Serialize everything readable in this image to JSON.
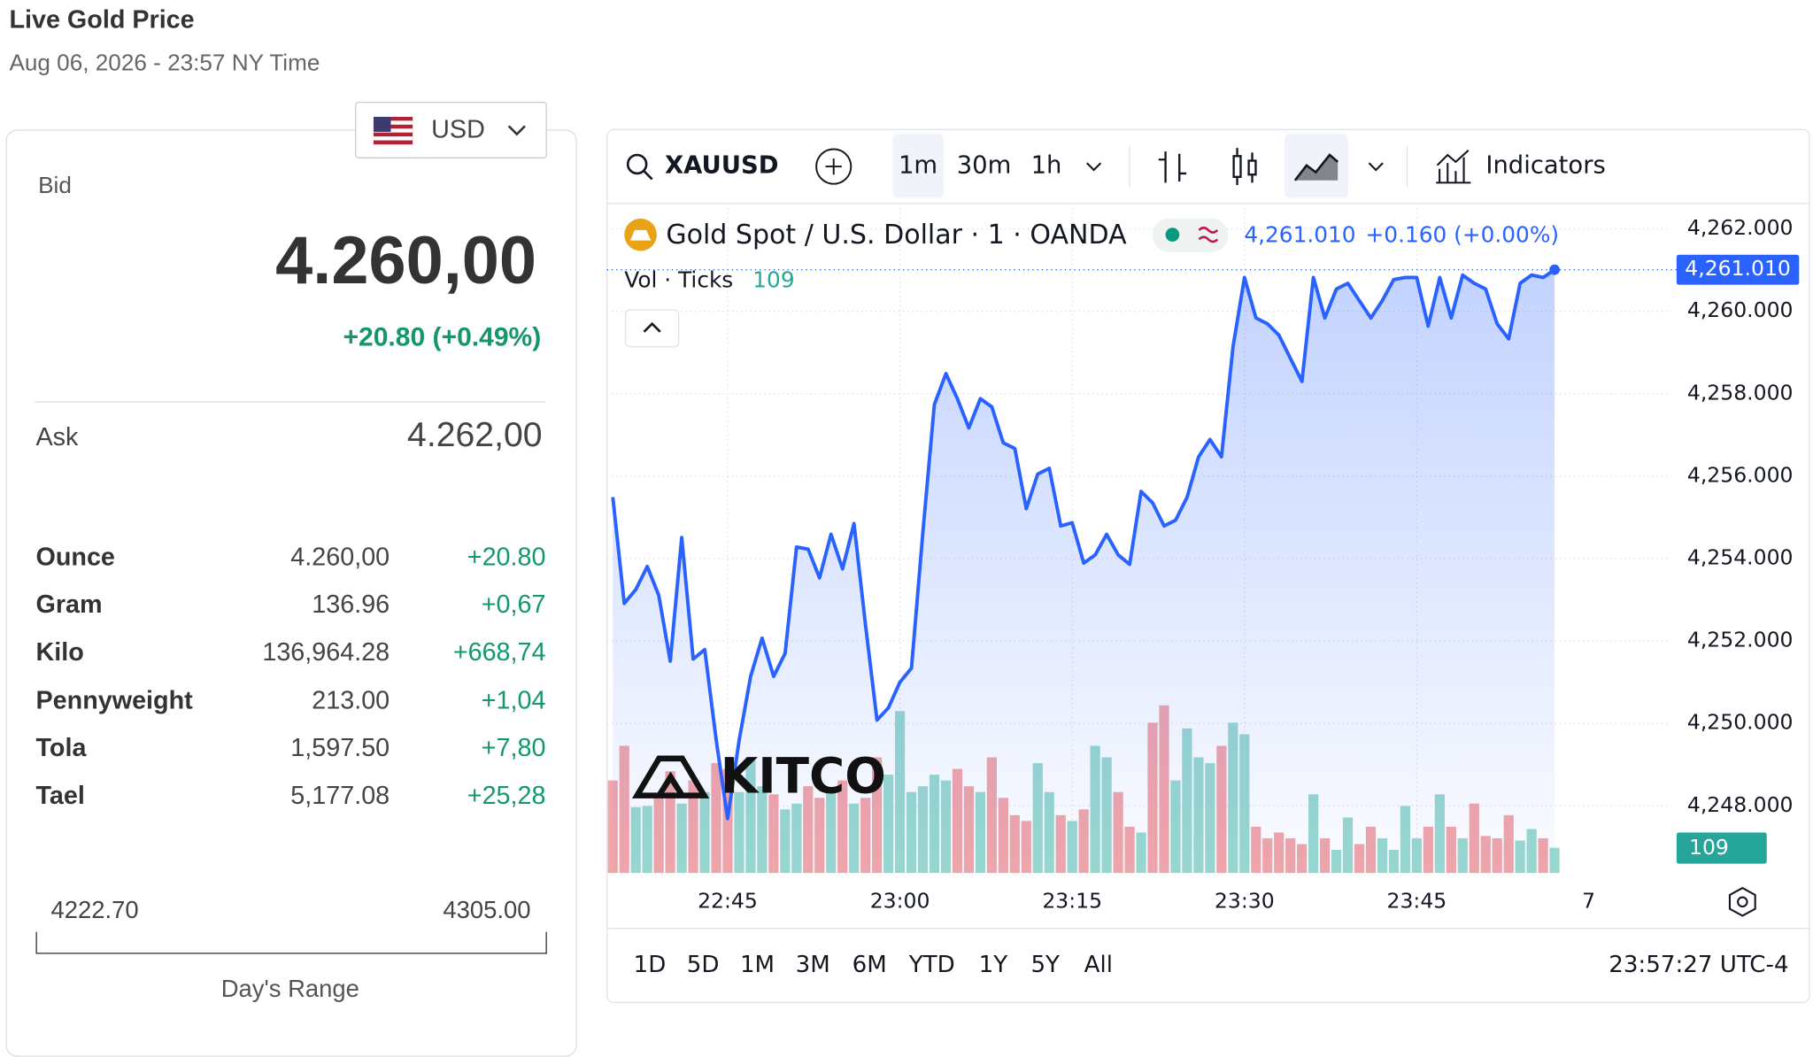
{
  "header": {
    "title": "Live Gold Price",
    "timestamp": "Aug 06, 2026 - 23:57 NY Time"
  },
  "currency": "USD",
  "quote": {
    "bid_label": "Bid",
    "bid": "4.260,00",
    "change": "+20.80 (+0.49%)",
    "ask_label": "Ask",
    "ask": "4.262,00"
  },
  "table": {
    "rows": [
      [
        "Ounce",
        "4.260,00",
        "+20.80"
      ],
      [
        "Gram",
        "136.96",
        "+0,67"
      ],
      [
        "Kilo",
        "136,964.28",
        "+668,74"
      ],
      [
        "Pennyweight",
        "213.00",
        "+1,04"
      ],
      [
        "Tola",
        "1,597.50",
        "+7,80"
      ],
      [
        "Tael",
        "5,177.08",
        "+25,28"
      ]
    ]
  },
  "day_range": {
    "low": "4222.70",
    "high": "4305.00",
    "label": "Day's Range"
  },
  "toolbar": {
    "symbol": "XAUUSD",
    "intervals": [
      "1m",
      "30m",
      "1h"
    ],
    "indicators": "Indicators"
  },
  "chart_data": {
    "type": "line",
    "title": "Gold Spot / U.S. Dollar · 1 · OANDA",
    "last_price": "4,261.010",
    "last_change": "+0.160 (+0.00%)",
    "volume_label": "Vol · Ticks",
    "watermark": "KITCO",
    "axis_edge_label": "7",
    "color": "#2962ff",
    "grid": true,
    "categories": [
      null,
      null,
      null,
      null,
      null,
      null,
      null,
      null,
      null,
      null,
      "22:45",
      null,
      null,
      null,
      null,
      null,
      null,
      null,
      null,
      null,
      null,
      null,
      null,
      null,
      null,
      "23:00",
      null,
      null,
      null,
      null,
      null,
      null,
      null,
      null,
      null,
      null,
      null,
      null,
      null,
      null,
      "23:15",
      null,
      null,
      null,
      null,
      null,
      null,
      null,
      null,
      null,
      null,
      null,
      null,
      null,
      null,
      "23:30",
      null,
      null,
      null,
      null,
      null,
      null,
      null,
      null,
      null,
      null,
      null,
      null,
      null,
      null,
      "23:45",
      null,
      null,
      null,
      null,
      null,
      null,
      null,
      null,
      null,
      null,
      null,
      null
    ],
    "values": [
      4255.49,
      4252.91,
      4253.25,
      4253.81,
      4253.11,
      4251.51,
      4254.51,
      4251.56,
      4251.79,
      4249.6,
      4247.69,
      4249.6,
      4251.14,
      4252.07,
      4251.14,
      4251.7,
      4254.28,
      4254.23,
      4253.53,
      4254.59,
      4253.75,
      4254.85,
      4252.4,
      4250.08,
      4250.38,
      4251.0,
      4251.34,
      4254.65,
      4257.74,
      4258.49,
      4257.88,
      4257.17,
      4257.88,
      4257.68,
      4256.81,
      4256.67,
      4255.21,
      4256.05,
      4256.19,
      4254.79,
      4254.87,
      4253.89,
      4254.09,
      4254.59,
      4254.09,
      4253.86,
      4255.63,
      4255.35,
      4254.79,
      4254.93,
      4255.49,
      4256.47,
      4256.89,
      4256.47,
      4259.14,
      4260.82,
      4259.84,
      4259.7,
      4259.42,
      4258.86,
      4258.3,
      4260.82,
      4259.84,
      4260.54,
      4260.68,
      4260.26,
      4259.84,
      4260.26,
      4260.77,
      4260.82,
      4260.82,
      4259.64,
      4260.82,
      4259.84,
      4260.88,
      4260.68,
      4260.54,
      4259.7,
      4259.33,
      4260.68,
      4260.88,
      4260.82,
      4261.01
    ],
    "volume": {
      "up_color": "#9ad8cf",
      "down_color": "#f2a6a9",
      "values": [
        400,
        550,
        285,
        290,
        325,
        440,
        300,
        400,
        350,
        475,
        450,
        350,
        500,
        375,
        340,
        275,
        300,
        375,
        325,
        350,
        400,
        300,
        325,
        500,
        425,
        700,
        350,
        375,
        425,
        400,
        450,
        375,
        350,
        500,
        325,
        250,
        225,
        475,
        350,
        250,
        225,
        275,
        550,
        500,
        350,
        200,
        175,
        650,
        725,
        400,
        625,
        500,
        475,
        550,
        650,
        600,
        200,
        150,
        175,
        150,
        125,
        340,
        150,
        100,
        240,
        125,
        200,
        150,
        100,
        290,
        150,
        200,
        340,
        200,
        150,
        300,
        160,
        150,
        250,
        140,
        190,
        150,
        109
      ]
    },
    "ylim": [
      4246.37,
      4262.505
    ],
    "yticks": [
      {
        "value": 4248,
        "label": "4,248.000"
      },
      {
        "value": 4250,
        "label": "4,250.000"
      },
      {
        "value": 4252,
        "label": "4,252.000"
      },
      {
        "value": 4254,
        "label": "4,254.000"
      },
      {
        "value": 4256,
        "label": "4,256.000"
      },
      {
        "value": 4258,
        "label": "4,258.000"
      },
      {
        "value": 4260,
        "label": "4,260.000"
      },
      {
        "value": 4262,
        "label": "4,262.000"
      }
    ]
  },
  "footer": {
    "ranges": [
      "1D",
      "5D",
      "1M",
      "3M",
      "6M",
      "YTD",
      "1Y",
      "5Y",
      "All"
    ],
    "clock": "23:57:27 UTC-4"
  }
}
